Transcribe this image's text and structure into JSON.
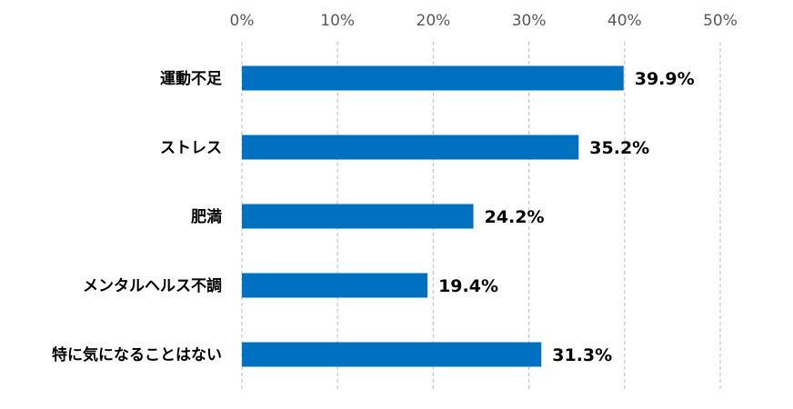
{
  "chart_data": {
    "type": "bar",
    "orientation": "horizontal",
    "categories": [
      "運動不足",
      "ストレス",
      "肥満",
      "メンタルヘルス不調",
      "特に気になることはない"
    ],
    "values": [
      39.9,
      35.2,
      24.2,
      19.4,
      31.3
    ],
    "value_labels": [
      "39.9%",
      "35.2%",
      "24.2%",
      "19.4%",
      "31.3%"
    ],
    "xlim": [
      0,
      50
    ],
    "x_ticks": [
      0,
      10,
      20,
      30,
      40,
      50
    ],
    "x_tick_labels": [
      "0%",
      "10%",
      "20%",
      "30%",
      "40%",
      "50%"
    ],
    "axis_position": "top",
    "grid": true,
    "bar_color": "#0070c0",
    "grid_color": "#c8c8c8"
  }
}
